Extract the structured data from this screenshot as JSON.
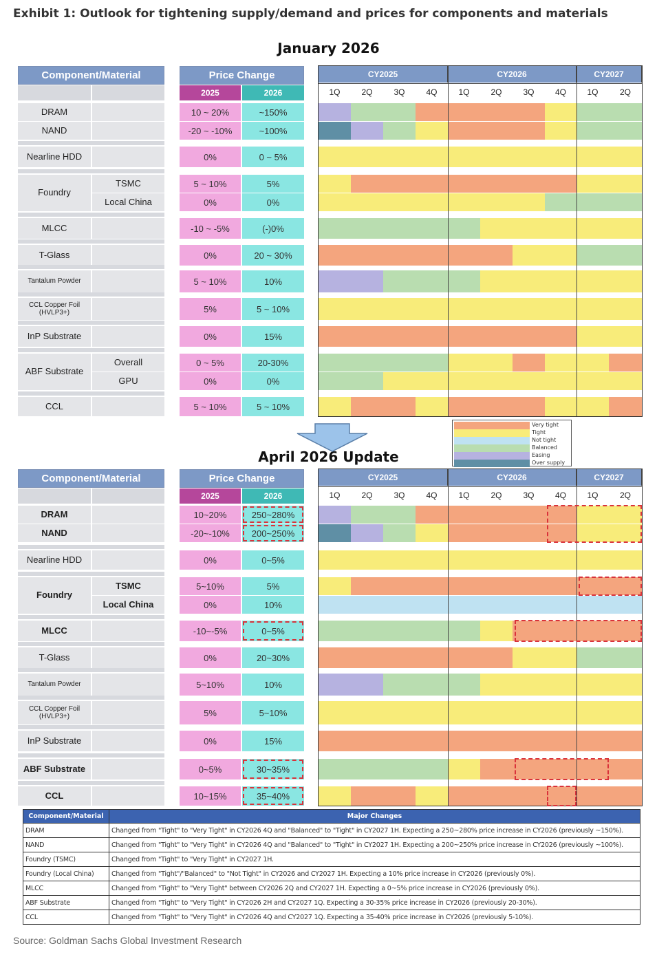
{
  "exhibit_title": "Exhibit 1: Outlook for tightening supply/demand and prices for components and materials",
  "source": "Source: Goldman Sachs Global Investment Research",
  "colors": {
    "very_tight": "#f4a57e",
    "tight": "#f8ec7a",
    "not_tight": "#bfe2f2",
    "balanced": "#b9ddb0",
    "easing": "#b6b2e0",
    "over_supply": "#5f8fa5"
  },
  "legend": [
    "Very tight",
    "Tight",
    "Not tight",
    "Balanced",
    "Easing",
    "Over supply"
  ],
  "headers": {
    "component": "Component/Material",
    "price_change": "Price Change",
    "y2025": "2025",
    "y2026": "2026",
    "years": [
      "CY2025",
      "CY2026",
      "CY2027"
    ],
    "quarters": [
      "1Q",
      "2Q",
      "3Q",
      "4Q",
      "1Q",
      "2Q",
      "3Q",
      "4Q",
      "1Q",
      "2Q"
    ]
  },
  "panels": [
    {
      "title": "January 2026",
      "rows": [
        {
          "name": "DRAM",
          "sub": "",
          "p25": "10 ~ 20%",
          "p26": "~150%",
          "tl": [
            "easing",
            "balanced",
            "balanced",
            "very_tight",
            "very_tight",
            "very_tight",
            "very_tight",
            "tight",
            "balanced",
            "balanced"
          ]
        },
        {
          "name": "NAND",
          "sub": "",
          "p25": "-20 ~ -10%",
          "p26": "~100%",
          "tl": [
            "over_supply",
            "easing",
            "balanced",
            "tight",
            "very_tight",
            "very_tight",
            "very_tight",
            "tight",
            "balanced",
            "balanced"
          ]
        },
        {
          "name": "Nearline HDD",
          "sub": "",
          "p25": "0%",
          "p26": "0 ~ 5%",
          "tl": [
            "tight",
            "tight",
            "tight",
            "tight",
            "tight",
            "tight",
            "tight",
            "tight",
            "tight",
            "tight"
          ]
        },
        {
          "name": "Foundry",
          "sub": "TSMC",
          "p25": "5 ~ 10%",
          "p26": "5%",
          "tl": [
            "tight",
            "very_tight",
            "very_tight",
            "very_tight",
            "very_tight",
            "very_tight",
            "very_tight",
            "very_tight",
            "tight",
            "tight"
          ]
        },
        {
          "name": "",
          "sub": "Local China",
          "p25": "0%",
          "p26": "0%",
          "tl": [
            "tight",
            "tight",
            "tight",
            "tight",
            "tight",
            "tight",
            "tight",
            "balanced",
            "balanced",
            "balanced"
          ]
        },
        {
          "name": "MLCC",
          "sub": "",
          "p25": "-10 ~ -5%",
          "p26": "(-)0%",
          "tl": [
            "balanced",
            "balanced",
            "balanced",
            "balanced",
            "balanced",
            "tight",
            "tight",
            "tight",
            "tight",
            "tight"
          ]
        },
        {
          "name": "T-Glass",
          "sub": "",
          "p25": "0%",
          "p26": "20 ~ 30%",
          "tl": [
            "very_tight",
            "very_tight",
            "very_tight",
            "very_tight",
            "very_tight",
            "very_tight",
            "tight",
            "tight",
            "balanced",
            "balanced"
          ]
        },
        {
          "name": "Tantalum Powder",
          "sub": "",
          "p25": "5 ~ 10%",
          "p26": "10%",
          "tl": [
            "easing",
            "easing",
            "balanced",
            "balanced",
            "balanced",
            "tight",
            "tight",
            "tight",
            "tight",
            "tight"
          ]
        },
        {
          "name": "CCL Copper Foil (HVLP3+)",
          "sub": "",
          "p25": "5%",
          "p26": "5 ~ 10%",
          "tl": [
            "tight",
            "tight",
            "tight",
            "tight",
            "tight",
            "tight",
            "tight",
            "tight",
            "tight",
            "tight"
          ]
        },
        {
          "name": "InP Substrate",
          "sub": "",
          "p25": "0%",
          "p26": "15%",
          "tl": [
            "very_tight",
            "very_tight",
            "very_tight",
            "very_tight",
            "very_tight",
            "very_tight",
            "very_tight",
            "very_tight",
            "tight",
            "tight"
          ]
        },
        {
          "name": "ABF Substrate",
          "sub": "Overall",
          "p25": "0 ~ 5%",
          "p26": "20-30%",
          "tl": [
            "balanced",
            "balanced",
            "balanced",
            "balanced",
            "tight",
            "tight",
            "very_tight",
            "tight",
            "tight",
            "very_tight"
          ]
        },
        {
          "name": "",
          "sub": "GPU",
          "p25": "0%",
          "p26": "0%",
          "tl": [
            "balanced",
            "balanced",
            "tight",
            "tight",
            "tight",
            "tight",
            "tight",
            "tight",
            "tight",
            "tight"
          ]
        },
        {
          "name": "CCL",
          "sub": "",
          "p25": "5 ~ 10%",
          "p26": "5 ~ 10%",
          "tl": [
            "tight",
            "very_tight",
            "very_tight",
            "tight",
            "very_tight",
            "very_tight",
            "very_tight",
            "tight",
            "tight",
            "very_tight"
          ]
        }
      ]
    },
    {
      "title": "April 2026 Update",
      "rows": [
        {
          "name": "DRAM",
          "sub": "",
          "p25": "10~20%",
          "p26": "250~280%",
          "tl": [
            "easing",
            "balanced",
            "balanced",
            "very_tight",
            "very_tight",
            "very_tight",
            "very_tight",
            "very_tight",
            "tight",
            "tight"
          ]
        },
        {
          "name": "NAND",
          "sub": "",
          "p25": "-20~-10%",
          "p26": "200~250%",
          "tl": [
            "over_supply",
            "easing",
            "balanced",
            "tight",
            "very_tight",
            "very_tight",
            "very_tight",
            "very_tight",
            "tight",
            "tight"
          ]
        },
        {
          "name": "Nearline HDD",
          "sub": "",
          "p25": "0%",
          "p26": "0~5%",
          "tl": [
            "tight",
            "tight",
            "tight",
            "tight",
            "tight",
            "tight",
            "tight",
            "tight",
            "tight",
            "tight"
          ]
        },
        {
          "name": "Foundry",
          "sub": "TSMC",
          "p25": "5~10%",
          "p26": "5%",
          "tl": [
            "tight",
            "very_tight",
            "very_tight",
            "very_tight",
            "very_tight",
            "very_tight",
            "very_tight",
            "very_tight",
            "very_tight",
            "very_tight"
          ]
        },
        {
          "name": "",
          "sub": "Local China",
          "p25": "0%",
          "p26": "10%",
          "tl": [
            "not_tight",
            "not_tight",
            "not_tight",
            "not_tight",
            "not_tight",
            "not_tight",
            "not_tight",
            "not_tight",
            "not_tight",
            "not_tight"
          ]
        },
        {
          "name": "MLCC",
          "sub": "",
          "p25": "-10~-5%",
          "p26": "0~5%",
          "tl": [
            "balanced",
            "balanced",
            "balanced",
            "balanced",
            "balanced",
            "tight",
            "very_tight",
            "very_tight",
            "very_tight",
            "very_tight"
          ]
        },
        {
          "name": "T-Glass",
          "sub": "",
          "p25": "0%",
          "p26": "20~30%",
          "tl": [
            "very_tight",
            "very_tight",
            "very_tight",
            "very_tight",
            "very_tight",
            "very_tight",
            "tight",
            "tight",
            "balanced",
            "balanced"
          ]
        },
        {
          "name": "Tantalum Powder",
          "sub": "",
          "p25": "5~10%",
          "p26": "10%",
          "tl": [
            "easing",
            "easing",
            "balanced",
            "balanced",
            "balanced",
            "tight",
            "tight",
            "tight",
            "tight",
            "tight"
          ]
        },
        {
          "name": "CCL Copper Foil (HVLP3+)",
          "sub": "",
          "p25": "5%",
          "p26": "5~10%",
          "tl": [
            "tight",
            "tight",
            "tight",
            "tight",
            "tight",
            "tight",
            "tight",
            "tight",
            "tight",
            "tight"
          ]
        },
        {
          "name": "InP Substrate",
          "sub": "",
          "p25": "0%",
          "p26": "15%",
          "tl": [
            "very_tight",
            "very_tight",
            "very_tight",
            "very_tight",
            "very_tight",
            "very_tight",
            "very_tight",
            "very_tight",
            "very_tight",
            "very_tight"
          ]
        },
        {
          "name": "ABF Substrate",
          "sub": "",
          "p25": "0~5%",
          "p26": "30~35%",
          "tl": [
            "balanced",
            "balanced",
            "balanced",
            "balanced",
            "tight",
            "very_tight",
            "very_tight",
            "very_tight",
            "very_tight",
            "very_tight"
          ]
        },
        {
          "name": "CCL",
          "sub": "",
          "p25": "10~15%",
          "p26": "35~40%",
          "tl": [
            "tight",
            "very_tight",
            "very_tight",
            "tight",
            "very_tight",
            "very_tight",
            "very_tight",
            "very_tight",
            "very_tight",
            "very_tight"
          ]
        }
      ]
    }
  ],
  "changes_table": {
    "headers": [
      "Component/Material",
      "Major Changes"
    ],
    "rows": [
      [
        "DRAM",
        "Changed from \"Tight\" to \"Very Tight\" in CY2026 4Q and \"Balanced\" to \"Tight\" in CY2027 1H. Expecting a 250~280% price increase in CY2026 (previously ~150%)."
      ],
      [
        "NAND",
        "Changed from \"Tight\" to \"Very Tight\" in CY2026 4Q and \"Balanced\" to \"Tight\" in CY2027 1H. Expecting a 200~250% price increase in CY2026 (previously ~100%)."
      ],
      [
        "Foundry (TSMC)",
        "Changed from \"Tight\" to \"Very Tight\" in CY2027 1H."
      ],
      [
        "Foundry (Local China)",
        "Changed from \"Tight\"/\"Balanced\" to \"Not Tight\" in CY2026 and CY2027 1H. Expecting a 10% price increase in CY2026 (previously 0%)."
      ],
      [
        "MLCC",
        "Changed from \"Tight\" to \"Very Tight\" between CY2026 2Q and CY2027 1H. Expecting a 0~5% price increase in CY2026 (previously 0%)."
      ],
      [
        "ABF Substrate",
        "Changed from \"Tight\" to \"Very Tight\" in CY2026 2H and CY2027 1Q. Expecting a 30-35% price increase in CY2026 (previously 20-30%)."
      ],
      [
        "CCL",
        "Changed from \"Tight\" to \"Very Tight\" in CY2026 4Q and CY2027 1Q. Expecting a 35-40% price increase in CY2026 (previously 5-10%)."
      ]
    ]
  }
}
